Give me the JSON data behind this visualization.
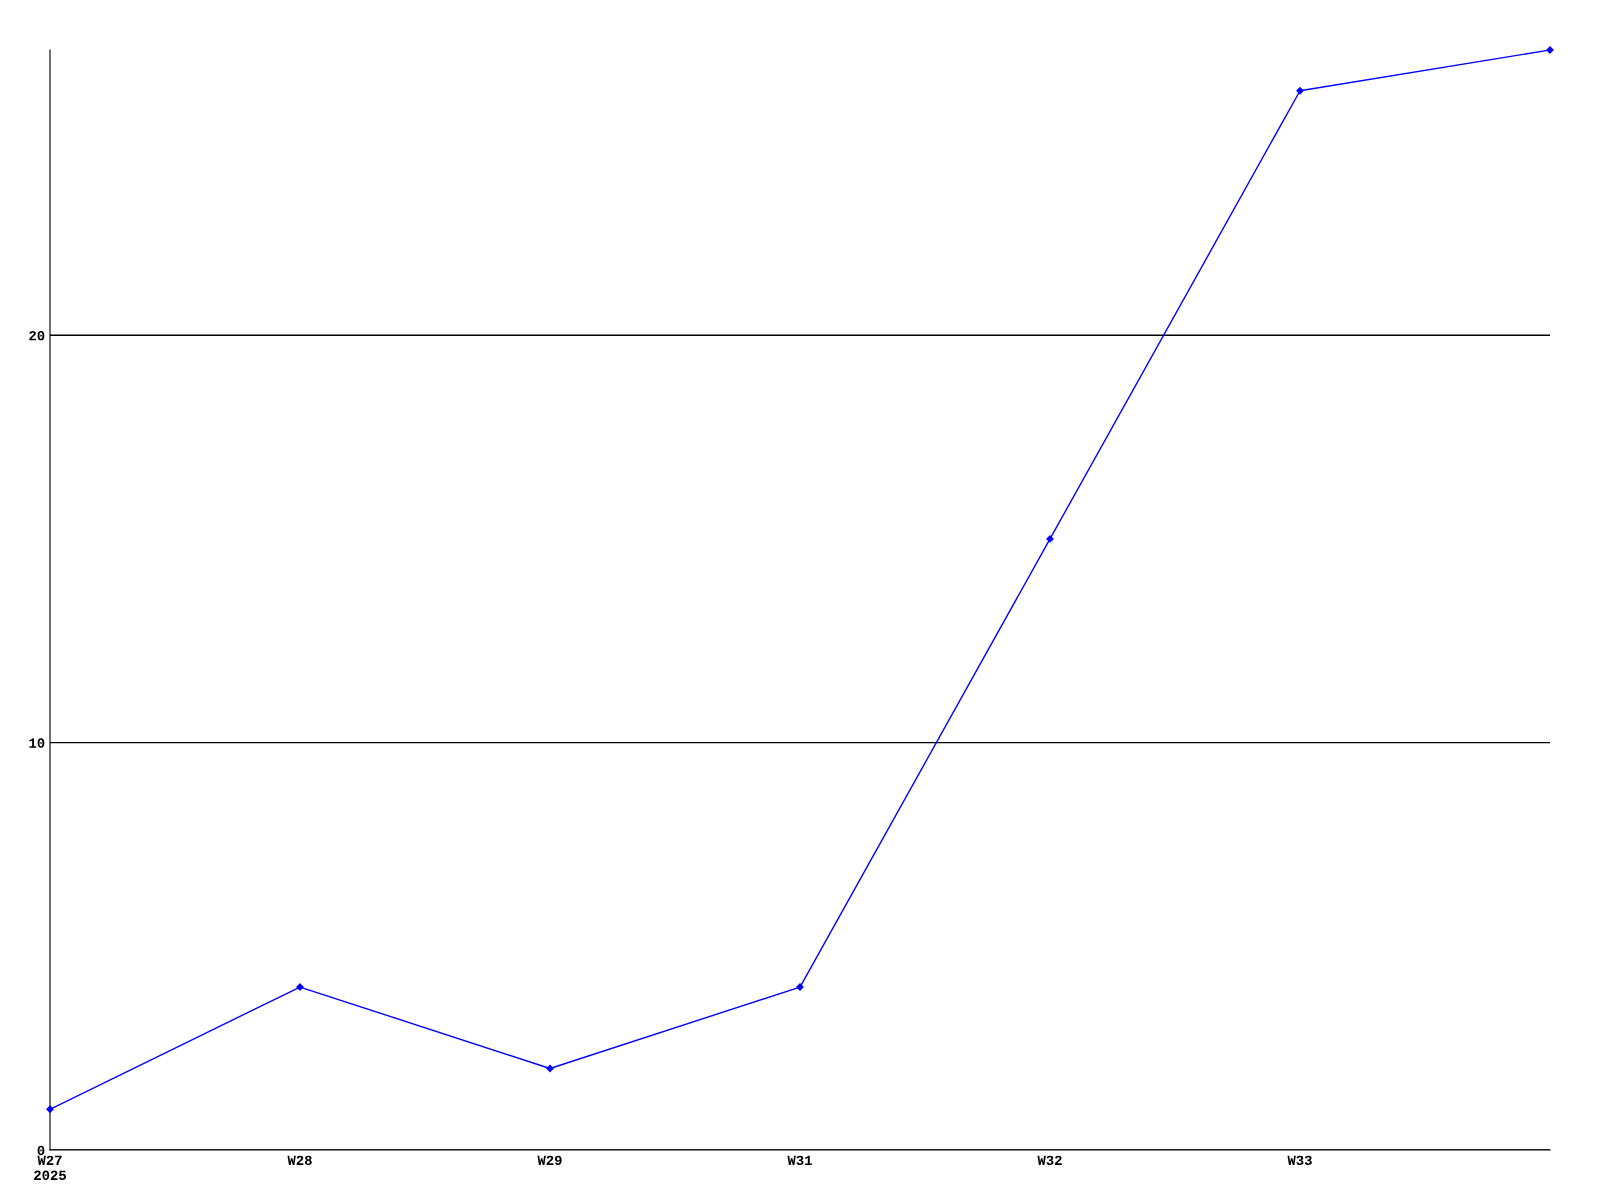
{
  "chart_data": {
    "type": "line",
    "categories": [
      "W27\n2025",
      "W28",
      "W29",
      "W31",
      "W32",
      "W33",
      null
    ],
    "series": [
      {
        "color": "#0000ff",
        "values": [
          1,
          4,
          2,
          4,
          15,
          26,
          27
        ]
      }
    ],
    "ylim": [
      0,
      27
    ],
    "yticks": [
      0,
      10,
      20
    ],
    "grid": "y",
    "marker": "diamond",
    "line_style": "solid"
  }
}
